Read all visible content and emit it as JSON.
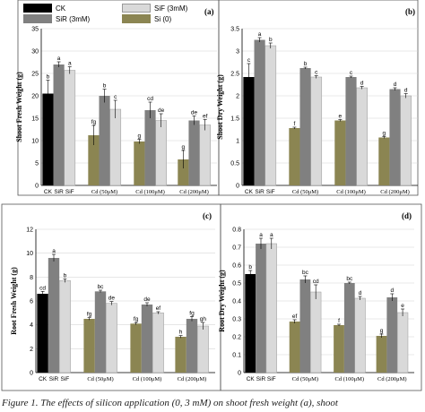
{
  "legend": [
    {
      "name": "CK",
      "color": "#000000"
    },
    {
      "name": "SiR (3mM)",
      "color": "#808080"
    },
    {
      "name": "SiF (3mM)",
      "color": "#d9d9d9"
    },
    {
      "name": "Si (0)",
      "color": "#8b8552"
    }
  ],
  "caption": "Figure 1. The effects of silicon application (0, 3 mM) on shoot fresh weight (a), shoot",
  "chart_data": [
    {
      "type": "bar",
      "panel": "(a)",
      "ylabel": "Shoot Fresh Weight (g)",
      "ylim": [
        0,
        35
      ],
      "yticks": [
        0,
        5,
        10,
        15,
        20,
        25,
        30,
        35
      ],
      "groups": [
        {
          "label": "",
          "bars": [
            {
              "series": "CK",
              "value": 20.5,
              "err": 3.0,
              "letter": "b"
            },
            {
              "series": "SiR",
              "value": 27.0,
              "err": 0.6,
              "letter": "a"
            },
            {
              "series": "SiF",
              "value": 25.7,
              "err": 0.8,
              "letter": "a"
            }
          ]
        },
        {
          "label": "Cd (50μM)",
          "bars": [
            {
              "series": "Si (0)",
              "value": 11.2,
              "err": 2.2,
              "letter": "fg"
            },
            {
              "series": "SiR",
              "value": 20.0,
              "err": 1.5,
              "letter": "b"
            },
            {
              "series": "SiF",
              "value": 17.0,
              "err": 2.0,
              "letter": "c"
            }
          ]
        },
        {
          "label": "Cd (100μM)",
          "bars": [
            {
              "series": "Si (0)",
              "value": 9.8,
              "err": 0.5,
              "letter": "g"
            },
            {
              "series": "SiR",
              "value": 16.8,
              "err": 1.8,
              "letter": "cd"
            },
            {
              "series": "SiF",
              "value": 14.5,
              "err": 1.5,
              "letter": "de"
            }
          ]
        },
        {
          "label": "Cd (200μM)",
          "bars": [
            {
              "series": "Si (0)",
              "value": 5.8,
              "err": 2.0,
              "letter": "g"
            },
            {
              "series": "SiR",
              "value": 14.5,
              "err": 1.0,
              "letter": "de"
            },
            {
              "series": "SiF",
              "value": 13.5,
              "err": 1.2,
              "letter": "ef"
            }
          ]
        }
      ],
      "ck_labels": [
        "CK",
        "SiR",
        "SiF"
      ]
    },
    {
      "type": "bar",
      "panel": "(b)",
      "ylabel": "Shoot Dry Weight (g)",
      "ylim": [
        0,
        3.5
      ],
      "yticks": [
        0,
        0.5,
        1,
        1.5,
        2,
        2.5,
        3,
        3.5
      ],
      "groups": [
        {
          "label": "",
          "bars": [
            {
              "series": "CK",
              "value": 2.42,
              "err": 0.3,
              "letter": "c"
            },
            {
              "series": "SiR",
              "value": 3.25,
              "err": 0.05,
              "letter": "a"
            },
            {
              "series": "SiF",
              "value": 3.12,
              "err": 0.06,
              "letter": "b"
            }
          ]
        },
        {
          "label": "Cd (50μM)",
          "bars": [
            {
              "series": "Si (0)",
              "value": 1.28,
              "err": 0.02,
              "letter": "f"
            },
            {
              "series": "SiR",
              "value": 2.62,
              "err": 0.02,
              "letter": "b"
            },
            {
              "series": "SiF",
              "value": 2.42,
              "err": 0.03,
              "letter": "c"
            }
          ]
        },
        {
          "label": "Cd (100μM)",
          "bars": [
            {
              "series": "Si (0)",
              "value": 1.45,
              "err": 0.02,
              "letter": "e"
            },
            {
              "series": "SiR",
              "value": 2.42,
              "err": 0.02,
              "letter": "c"
            },
            {
              "series": "SiF",
              "value": 2.18,
              "err": 0.03,
              "letter": "d"
            }
          ]
        },
        {
          "label": "Cd (200μM)",
          "bars": [
            {
              "series": "Si (0)",
              "value": 1.07,
              "err": 0.02,
              "letter": "g"
            },
            {
              "series": "SiR",
              "value": 2.15,
              "err": 0.03,
              "letter": "d"
            },
            {
              "series": "SiF",
              "value": 2.0,
              "err": 0.05,
              "letter": "d"
            }
          ]
        }
      ],
      "ck_labels": [
        "CK",
        "SiR",
        "SiF"
      ]
    },
    {
      "type": "bar",
      "panel": "(c)",
      "ylabel": "Root Fresh Weight (g)",
      "ylim": [
        0,
        12
      ],
      "yticks": [
        0,
        2,
        4,
        6,
        8,
        10,
        12
      ],
      "groups": [
        {
          "label": "",
          "bars": [
            {
              "series": "CK",
              "value": 6.6,
              "err": 0.2,
              "letter": "cd"
            },
            {
              "series": "SiR",
              "value": 9.6,
              "err": 0.3,
              "letter": "a"
            },
            {
              "series": "SiF",
              "value": 7.7,
              "err": 0.15,
              "letter": "b"
            }
          ]
        },
        {
          "label": "Cd (50μM)",
          "bars": [
            {
              "series": "Si (0)",
              "value": 4.5,
              "err": 0.1,
              "letter": "fg"
            },
            {
              "series": "SiR",
              "value": 6.8,
              "err": 0.1,
              "letter": "bc"
            },
            {
              "series": "SiF",
              "value": 5.8,
              "err": 0.15,
              "letter": "de"
            }
          ]
        },
        {
          "label": "Cd (100μM)",
          "bars": [
            {
              "series": "Si (0)",
              "value": 4.1,
              "err": 0.1,
              "letter": "fg"
            },
            {
              "series": "SiR",
              "value": 5.7,
              "err": 0.15,
              "letter": "de"
            },
            {
              "series": "SiF",
              "value": 5.0,
              "err": 0.1,
              "letter": "ef"
            }
          ]
        },
        {
          "label": "Cd (200μM)",
          "bars": [
            {
              "series": "Si (0)",
              "value": 3.0,
              "err": 0.1,
              "letter": "h"
            },
            {
              "series": "SiR",
              "value": 4.5,
              "err": 0.2,
              "letter": "fg"
            },
            {
              "series": "SiF",
              "value": 3.9,
              "err": 0.3,
              "letter": "gh"
            }
          ]
        }
      ],
      "ck_labels": [
        "CK",
        "SiR",
        "SiF"
      ]
    },
    {
      "type": "bar",
      "panel": "(d)",
      "ylabel": "Root Dry Weight (g)",
      "ylim": [
        0,
        0.8
      ],
      "yticks": [
        0,
        0.1,
        0.2,
        0.3,
        0.4,
        0.5,
        0.6,
        0.7,
        0.8
      ],
      "groups": [
        {
          "label": "",
          "bars": [
            {
              "series": "CK",
              "value": 0.55,
              "err": 0.02,
              "letter": "b"
            },
            {
              "series": "SiR",
              "value": 0.72,
              "err": 0.03,
              "letter": "a"
            },
            {
              "series": "SiF",
              "value": 0.72,
              "err": 0.03,
              "letter": "a"
            }
          ]
        },
        {
          "label": "Cd (50μM)",
          "bars": [
            {
              "series": "Si (0)",
              "value": 0.285,
              "err": 0.01,
              "letter": "ef"
            },
            {
              "series": "SiR",
              "value": 0.52,
              "err": 0.02,
              "letter": "bc"
            },
            {
              "series": "SiF",
              "value": 0.45,
              "err": 0.04,
              "letter": "cd"
            }
          ]
        },
        {
          "label": "Cd (100μM)",
          "bars": [
            {
              "series": "Si (0)",
              "value": 0.265,
              "err": 0.005,
              "letter": "f"
            },
            {
              "series": "SiR",
              "value": 0.5,
              "err": 0.005,
              "letter": "bc"
            },
            {
              "series": "SiF",
              "value": 0.415,
              "err": 0.01,
              "letter": "d"
            }
          ]
        },
        {
          "label": "Cd (200μM)",
          "bars": [
            {
              "series": "Si (0)",
              "value": 0.205,
              "err": 0.01,
              "letter": "g"
            },
            {
              "series": "SiR",
              "value": 0.42,
              "err": 0.02,
              "letter": "d"
            },
            {
              "series": "SiF",
              "value": 0.335,
              "err": 0.02,
              "letter": "e"
            }
          ]
        }
      ],
      "ck_labels": [
        "CK",
        "SiR",
        "SiF"
      ]
    }
  ]
}
